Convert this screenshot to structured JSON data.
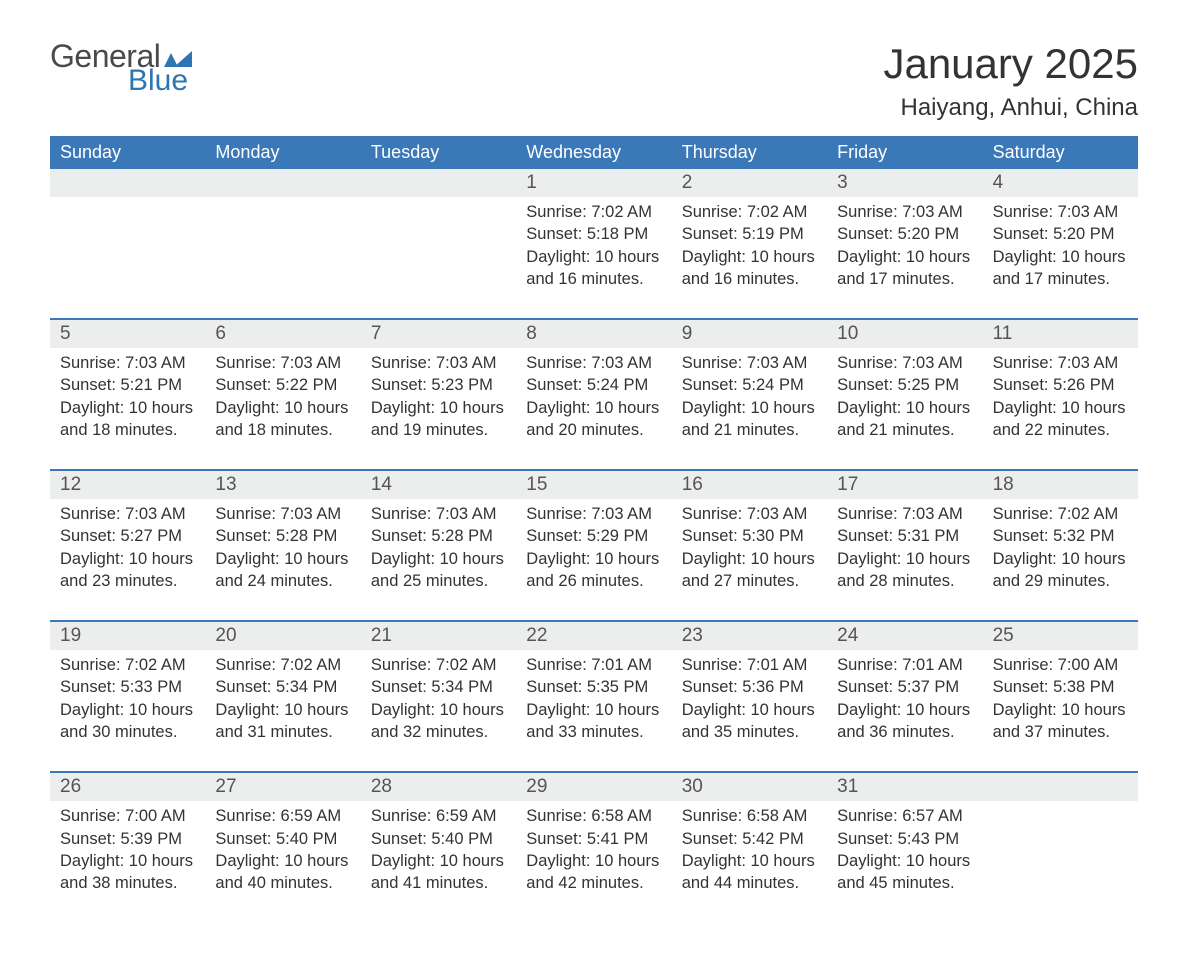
{
  "colors": {
    "header_bg": "#3a78b8",
    "header_text": "#ffffff",
    "daynum_bg": "#eceded",
    "border": "#3a78b8",
    "body_text": "#333333",
    "logo_gray": "#4a4a4a",
    "logo_blue": "#2f74b5",
    "page_bg": "#ffffff"
  },
  "logo": {
    "word1": "General",
    "word2": "Blue"
  },
  "title": "January 2025",
  "location": "Haiyang, Anhui, China",
  "weekdays": [
    "Sunday",
    "Monday",
    "Tuesday",
    "Wednesday",
    "Thursday",
    "Friday",
    "Saturday"
  ],
  "weeks": [
    [
      null,
      null,
      null,
      {
        "n": "1",
        "sr": "Sunrise: 7:02 AM",
        "ss": "Sunset: 5:18 PM",
        "d1": "Daylight: 10 hours",
        "d2": "and 16 minutes."
      },
      {
        "n": "2",
        "sr": "Sunrise: 7:02 AM",
        "ss": "Sunset: 5:19 PM",
        "d1": "Daylight: 10 hours",
        "d2": "and 16 minutes."
      },
      {
        "n": "3",
        "sr": "Sunrise: 7:03 AM",
        "ss": "Sunset: 5:20 PM",
        "d1": "Daylight: 10 hours",
        "d2": "and 17 minutes."
      },
      {
        "n": "4",
        "sr": "Sunrise: 7:03 AM",
        "ss": "Sunset: 5:20 PM",
        "d1": "Daylight: 10 hours",
        "d2": "and 17 minutes."
      }
    ],
    [
      {
        "n": "5",
        "sr": "Sunrise: 7:03 AM",
        "ss": "Sunset: 5:21 PM",
        "d1": "Daylight: 10 hours",
        "d2": "and 18 minutes."
      },
      {
        "n": "6",
        "sr": "Sunrise: 7:03 AM",
        "ss": "Sunset: 5:22 PM",
        "d1": "Daylight: 10 hours",
        "d2": "and 18 minutes."
      },
      {
        "n": "7",
        "sr": "Sunrise: 7:03 AM",
        "ss": "Sunset: 5:23 PM",
        "d1": "Daylight: 10 hours",
        "d2": "and 19 minutes."
      },
      {
        "n": "8",
        "sr": "Sunrise: 7:03 AM",
        "ss": "Sunset: 5:24 PM",
        "d1": "Daylight: 10 hours",
        "d2": "and 20 minutes."
      },
      {
        "n": "9",
        "sr": "Sunrise: 7:03 AM",
        "ss": "Sunset: 5:24 PM",
        "d1": "Daylight: 10 hours",
        "d2": "and 21 minutes."
      },
      {
        "n": "10",
        "sr": "Sunrise: 7:03 AM",
        "ss": "Sunset: 5:25 PM",
        "d1": "Daylight: 10 hours",
        "d2": "and 21 minutes."
      },
      {
        "n": "11",
        "sr": "Sunrise: 7:03 AM",
        "ss": "Sunset: 5:26 PM",
        "d1": "Daylight: 10 hours",
        "d2": "and 22 minutes."
      }
    ],
    [
      {
        "n": "12",
        "sr": "Sunrise: 7:03 AM",
        "ss": "Sunset: 5:27 PM",
        "d1": "Daylight: 10 hours",
        "d2": "and 23 minutes."
      },
      {
        "n": "13",
        "sr": "Sunrise: 7:03 AM",
        "ss": "Sunset: 5:28 PM",
        "d1": "Daylight: 10 hours",
        "d2": "and 24 minutes."
      },
      {
        "n": "14",
        "sr": "Sunrise: 7:03 AM",
        "ss": "Sunset: 5:28 PM",
        "d1": "Daylight: 10 hours",
        "d2": "and 25 minutes."
      },
      {
        "n": "15",
        "sr": "Sunrise: 7:03 AM",
        "ss": "Sunset: 5:29 PM",
        "d1": "Daylight: 10 hours",
        "d2": "and 26 minutes."
      },
      {
        "n": "16",
        "sr": "Sunrise: 7:03 AM",
        "ss": "Sunset: 5:30 PM",
        "d1": "Daylight: 10 hours",
        "d2": "and 27 minutes."
      },
      {
        "n": "17",
        "sr": "Sunrise: 7:03 AM",
        "ss": "Sunset: 5:31 PM",
        "d1": "Daylight: 10 hours",
        "d2": "and 28 minutes."
      },
      {
        "n": "18",
        "sr": "Sunrise: 7:02 AM",
        "ss": "Sunset: 5:32 PM",
        "d1": "Daylight: 10 hours",
        "d2": "and 29 minutes."
      }
    ],
    [
      {
        "n": "19",
        "sr": "Sunrise: 7:02 AM",
        "ss": "Sunset: 5:33 PM",
        "d1": "Daylight: 10 hours",
        "d2": "and 30 minutes."
      },
      {
        "n": "20",
        "sr": "Sunrise: 7:02 AM",
        "ss": "Sunset: 5:34 PM",
        "d1": "Daylight: 10 hours",
        "d2": "and 31 minutes."
      },
      {
        "n": "21",
        "sr": "Sunrise: 7:02 AM",
        "ss": "Sunset: 5:34 PM",
        "d1": "Daylight: 10 hours",
        "d2": "and 32 minutes."
      },
      {
        "n": "22",
        "sr": "Sunrise: 7:01 AM",
        "ss": "Sunset: 5:35 PM",
        "d1": "Daylight: 10 hours",
        "d2": "and 33 minutes."
      },
      {
        "n": "23",
        "sr": "Sunrise: 7:01 AM",
        "ss": "Sunset: 5:36 PM",
        "d1": "Daylight: 10 hours",
        "d2": "and 35 minutes."
      },
      {
        "n": "24",
        "sr": "Sunrise: 7:01 AM",
        "ss": "Sunset: 5:37 PM",
        "d1": "Daylight: 10 hours",
        "d2": "and 36 minutes."
      },
      {
        "n": "25",
        "sr": "Sunrise: 7:00 AM",
        "ss": "Sunset: 5:38 PM",
        "d1": "Daylight: 10 hours",
        "d2": "and 37 minutes."
      }
    ],
    [
      {
        "n": "26",
        "sr": "Sunrise: 7:00 AM",
        "ss": "Sunset: 5:39 PM",
        "d1": "Daylight: 10 hours",
        "d2": "and 38 minutes."
      },
      {
        "n": "27",
        "sr": "Sunrise: 6:59 AM",
        "ss": "Sunset: 5:40 PM",
        "d1": "Daylight: 10 hours",
        "d2": "and 40 minutes."
      },
      {
        "n": "28",
        "sr": "Sunrise: 6:59 AM",
        "ss": "Sunset: 5:40 PM",
        "d1": "Daylight: 10 hours",
        "d2": "and 41 minutes."
      },
      {
        "n": "29",
        "sr": "Sunrise: 6:58 AM",
        "ss": "Sunset: 5:41 PM",
        "d1": "Daylight: 10 hours",
        "d2": "and 42 minutes."
      },
      {
        "n": "30",
        "sr": "Sunrise: 6:58 AM",
        "ss": "Sunset: 5:42 PM",
        "d1": "Daylight: 10 hours",
        "d2": "and 44 minutes."
      },
      {
        "n": "31",
        "sr": "Sunrise: 6:57 AM",
        "ss": "Sunset: 5:43 PM",
        "d1": "Daylight: 10 hours",
        "d2": "and 45 minutes."
      },
      null
    ]
  ]
}
